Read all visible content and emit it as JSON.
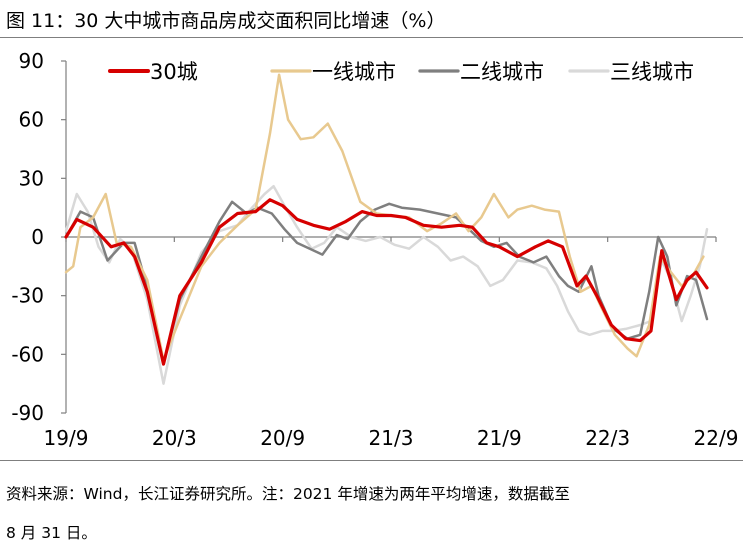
{
  "header": {
    "title": "图 11：30 大中城市商品房成交面积同比增速（%）"
  },
  "footer": {
    "line1": "资料来源：Wind，长江证券研究所。注：2021 年增速为两年平均增速，数据截至",
    "line2": "8 月 31 日。"
  },
  "chart_data": {
    "type": "line",
    "title": "30 大中城市商品房成交面积同比增速（%）",
    "xlabel": "",
    "ylabel": "",
    "ylim": [
      -90,
      90
    ],
    "yticks": [
      90,
      60,
      30,
      0,
      -30,
      -60,
      -90
    ],
    "x_range": [
      0,
      36
    ],
    "x_ticks": [
      {
        "x": 0,
        "label": "19/9"
      },
      {
        "x": 6,
        "label": "20/3"
      },
      {
        "x": 12,
        "label": "20/9"
      },
      {
        "x": 18,
        "label": "21/3"
      },
      {
        "x": 24,
        "label": "21/9"
      },
      {
        "x": 30,
        "label": "22/3"
      },
      {
        "x": 36,
        "label": "22/9"
      }
    ],
    "legend_position": "top",
    "series": [
      {
        "name": "30城",
        "color": "#d60000",
        "width": 3.2,
        "points": [
          [
            0,
            0
          ],
          [
            0.6,
            9
          ],
          [
            1.5,
            5
          ],
          [
            2.5,
            -5
          ],
          [
            3.2,
            -3
          ],
          [
            3.8,
            -10
          ],
          [
            4.5,
            -28
          ],
          [
            5.4,
            -65
          ],
          [
            6.3,
            -30
          ],
          [
            7.5,
            -13
          ],
          [
            8.5,
            5
          ],
          [
            9.5,
            12
          ],
          [
            10.5,
            13
          ],
          [
            11.3,
            19
          ],
          [
            12,
            16
          ],
          [
            12.8,
            9
          ],
          [
            13.7,
            6
          ],
          [
            14.6,
            4
          ],
          [
            15.5,
            8
          ],
          [
            16.4,
            13
          ],
          [
            17.2,
            11
          ],
          [
            18,
            11
          ],
          [
            18.8,
            10
          ],
          [
            19.8,
            6
          ],
          [
            20.8,
            5
          ],
          [
            21.8,
            6
          ],
          [
            22.5,
            5
          ],
          [
            23.3,
            -3
          ],
          [
            24,
            -5
          ],
          [
            25,
            -10
          ],
          [
            26,
            -5
          ],
          [
            26.7,
            -2
          ],
          [
            27.5,
            -5
          ],
          [
            28.3,
            -25
          ],
          [
            28.8,
            -20
          ],
          [
            29.4,
            -30
          ],
          [
            30.2,
            -45
          ],
          [
            31,
            -52
          ],
          [
            31.8,
            -53
          ],
          [
            32.4,
            -48
          ],
          [
            33,
            -7
          ],
          [
            33.8,
            -32
          ],
          [
            34.4,
            -22
          ],
          [
            34.9,
            -18
          ],
          [
            35.5,
            -26
          ]
        ]
      },
      {
        "name": "一线城市",
        "color": "#e8c98f",
        "width": 2.5,
        "points": [
          [
            0,
            -18
          ],
          [
            0.4,
            -15
          ],
          [
            0.8,
            5
          ],
          [
            1.5,
            10
          ],
          [
            2.2,
            22
          ],
          [
            2.8,
            -3
          ],
          [
            3.6,
            -5
          ],
          [
            4.5,
            -22
          ],
          [
            5.4,
            -63
          ],
          [
            6.3,
            -42
          ],
          [
            7.5,
            -15
          ],
          [
            8.5,
            -3
          ],
          [
            9.5,
            6
          ],
          [
            10.5,
            14
          ],
          [
            11.3,
            53
          ],
          [
            11.8,
            83
          ],
          [
            12.3,
            60
          ],
          [
            13,
            50
          ],
          [
            13.7,
            51
          ],
          [
            14.5,
            58
          ],
          [
            15.3,
            44
          ],
          [
            16.3,
            18
          ],
          [
            17.2,
            12
          ],
          [
            18,
            11
          ],
          [
            19,
            10
          ],
          [
            20,
            3
          ],
          [
            20.8,
            7
          ],
          [
            21.6,
            12
          ],
          [
            22.3,
            3
          ],
          [
            23,
            10
          ],
          [
            23.7,
            22
          ],
          [
            24.5,
            10
          ],
          [
            25,
            14
          ],
          [
            25.8,
            16
          ],
          [
            26.5,
            14
          ],
          [
            27.3,
            13
          ],
          [
            27.9,
            -10
          ],
          [
            28.5,
            -28
          ],
          [
            29.1,
            -25
          ],
          [
            29.6,
            -35
          ],
          [
            30.4,
            -50
          ],
          [
            31.1,
            -57
          ],
          [
            31.6,
            -61
          ],
          [
            32.3,
            -45
          ],
          [
            32.9,
            -10
          ],
          [
            33.5,
            -18
          ],
          [
            34.1,
            -25
          ],
          [
            34.7,
            -20
          ],
          [
            35.3,
            -10
          ]
        ]
      },
      {
        "name": "二线城市",
        "color": "#7f7f7f",
        "width": 2.5,
        "points": [
          [
            0,
            0
          ],
          [
            0.8,
            13
          ],
          [
            1.5,
            10
          ],
          [
            2.3,
            -12
          ],
          [
            3.2,
            -3
          ],
          [
            3.8,
            -3
          ],
          [
            4.5,
            -26
          ],
          [
            5.4,
            -65
          ],
          [
            6.3,
            -32
          ],
          [
            7.5,
            -10
          ],
          [
            8.5,
            8
          ],
          [
            9.2,
            18
          ],
          [
            10,
            12
          ],
          [
            10.6,
            15
          ],
          [
            11.4,
            12
          ],
          [
            12.1,
            4
          ],
          [
            12.8,
            -3
          ],
          [
            13.5,
            -6
          ],
          [
            14.2,
            -9
          ],
          [
            15,
            1
          ],
          [
            15.6,
            -1
          ],
          [
            16.3,
            8
          ],
          [
            17.1,
            14
          ],
          [
            17.9,
            17
          ],
          [
            18.6,
            15
          ],
          [
            19.6,
            14
          ],
          [
            20.6,
            12
          ],
          [
            21.6,
            10
          ],
          [
            22.2,
            5
          ],
          [
            23,
            -2
          ],
          [
            23.7,
            -5
          ],
          [
            24.4,
            -3
          ],
          [
            25.1,
            -10
          ],
          [
            25.9,
            -13
          ],
          [
            26.6,
            -10
          ],
          [
            27.3,
            -20
          ],
          [
            27.8,
            -25
          ],
          [
            28.4,
            -28
          ],
          [
            29.1,
            -15
          ],
          [
            29.5,
            -30
          ],
          [
            30.3,
            -47
          ],
          [
            31.1,
            -52
          ],
          [
            31.8,
            -50
          ],
          [
            32.3,
            -28
          ],
          [
            32.8,
            0
          ],
          [
            33.3,
            -10
          ],
          [
            33.8,
            -35
          ],
          [
            34.4,
            -20
          ],
          [
            34.9,
            -22
          ],
          [
            35.5,
            -42
          ]
        ]
      },
      {
        "name": "三线城市",
        "color": "#d9d9d9",
        "width": 2.5,
        "points": [
          [
            0,
            3
          ],
          [
            0.6,
            22
          ],
          [
            1.2,
            13
          ],
          [
            1.8,
            -5
          ],
          [
            2.4,
            -13
          ],
          [
            3,
            -1
          ],
          [
            3.6,
            -6
          ],
          [
            4.5,
            -32
          ],
          [
            5.4,
            -75
          ],
          [
            6.3,
            -35
          ],
          [
            7.5,
            -8
          ],
          [
            8.5,
            3
          ],
          [
            9.5,
            6
          ],
          [
            10.3,
            15
          ],
          [
            11,
            22
          ],
          [
            11.5,
            26
          ],
          [
            12.1,
            16
          ],
          [
            12.8,
            5
          ],
          [
            13.6,
            -6
          ],
          [
            14.3,
            -3
          ],
          [
            15,
            5
          ],
          [
            15.8,
            0
          ],
          [
            16.6,
            -2
          ],
          [
            17.4,
            0
          ],
          [
            18.2,
            -4
          ],
          [
            19,
            -6
          ],
          [
            19.8,
            0
          ],
          [
            20.6,
            -5
          ],
          [
            21.3,
            -12
          ],
          [
            22,
            -10
          ],
          [
            22.8,
            -15
          ],
          [
            23.5,
            -25
          ],
          [
            24.2,
            -22
          ],
          [
            25,
            -12
          ],
          [
            25.8,
            -13
          ],
          [
            26.6,
            -16
          ],
          [
            27.2,
            -25
          ],
          [
            27.8,
            -38
          ],
          [
            28.4,
            -48
          ],
          [
            29,
            -50
          ],
          [
            29.7,
            -48
          ],
          [
            30.3,
            -48
          ],
          [
            31,
            -47
          ],
          [
            31.8,
            -45
          ],
          [
            32.4,
            -43
          ],
          [
            33,
            -12
          ],
          [
            33.5,
            -22
          ],
          [
            34.1,
            -43
          ],
          [
            34.6,
            -30
          ],
          [
            35.1,
            -15
          ],
          [
            35.5,
            4
          ]
        ]
      }
    ]
  }
}
